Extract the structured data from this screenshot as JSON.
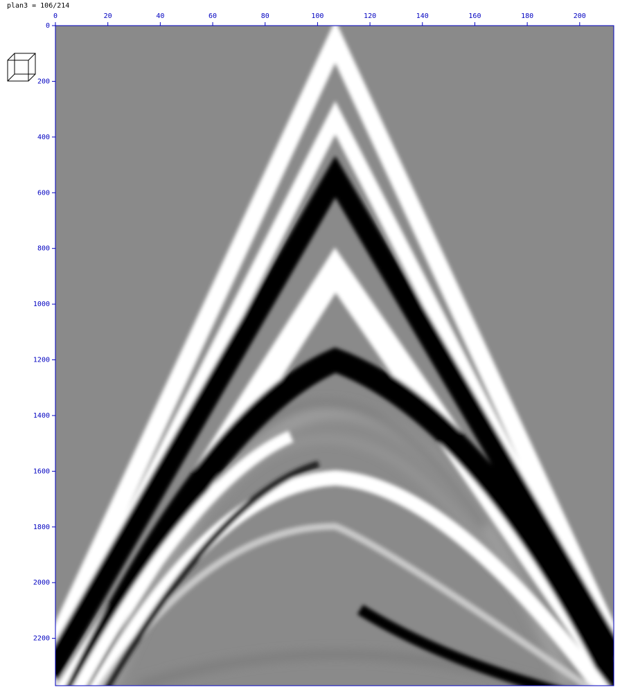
{
  "chart_data": {
    "type": "image",
    "title": "plan3 = 106/214",
    "xlim": [
      0,
      213
    ],
    "ylim": [
      0,
      2370
    ],
    "xticks": [
      0,
      20,
      40,
      60,
      80,
      100,
      120,
      140,
      160,
      180,
      200
    ],
    "yticks": [
      0,
      200,
      400,
      600,
      800,
      1000,
      1200,
      1400,
      1600,
      1800,
      2000,
      2200
    ]
  }
}
